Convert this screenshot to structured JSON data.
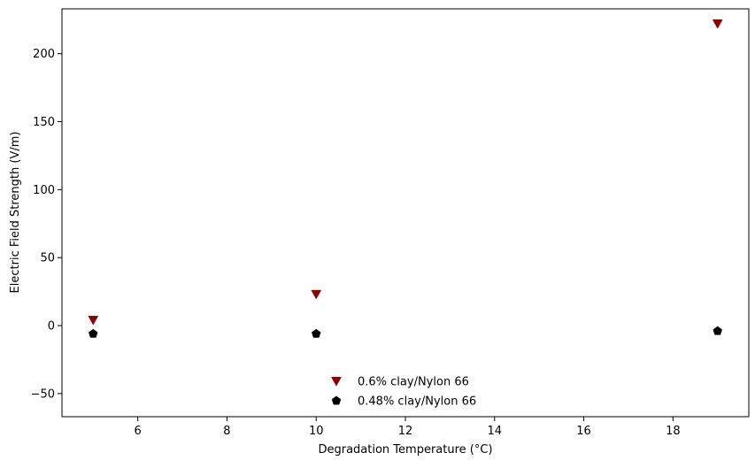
{
  "chart_data": {
    "type": "scatter",
    "title": "",
    "xlabel": "Degradation Temperature (°C)",
    "ylabel": "Electric Field Strength (V/m)",
    "xlim": [
      4.3,
      19.7
    ],
    "ylim": [
      -67,
      233
    ],
    "xticks": [
      6,
      8,
      10,
      12,
      14,
      16,
      18
    ],
    "yticks": [
      -50,
      0,
      50,
      100,
      150,
      200
    ],
    "grid": false,
    "legend_position": "lower center",
    "series": [
      {
        "name": "0.6% clay/Nylon 66",
        "marker": "triangle-down",
        "color": "#8b0000",
        "x": [
          5,
          10,
          19
        ],
        "y": [
          4,
          23,
          222
        ]
      },
      {
        "name": "0.48% clay/Nylon 66",
        "marker": "pentagon",
        "color": "#000000",
        "x": [
          5,
          10,
          19
        ],
        "y": [
          -6,
          -6,
          -4
        ]
      }
    ]
  }
}
